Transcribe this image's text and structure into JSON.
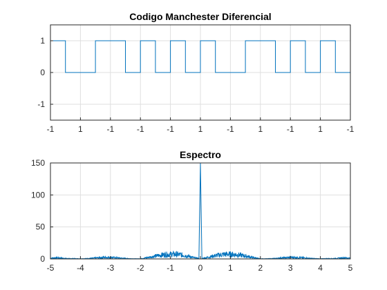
{
  "chart_data": [
    {
      "type": "line",
      "title": "Codigo Manchester Diferencial",
      "xlabel": "",
      "ylabel": "",
      "x_tick_labels": [
        "-1",
        "1",
        "-1",
        "-1",
        "-1",
        "1",
        "-1",
        "1",
        "-1",
        "1",
        "-1"
      ],
      "y_ticks": [
        -1,
        0,
        1
      ],
      "ylim": [
        -1.5,
        1.5
      ],
      "grid": true,
      "color": "#0072bd",
      "series": [
        {
          "x": [
            0,
            0.5,
            0.5,
            1.5,
            1.5,
            2.5,
            2.5,
            3.0,
            3.0,
            3.5,
            3.5,
            4.0,
            4.0,
            4.5,
            4.5,
            5.0,
            5.0,
            5.5,
            5.5,
            6.5,
            6.5,
            7.5,
            7.5,
            8.0,
            8.0,
            8.5,
            8.5,
            9.0,
            9.0,
            9.5,
            9.5,
            10.0
          ],
          "y": [
            1,
            1,
            0,
            0,
            1,
            1,
            0,
            0,
            1,
            1,
            0,
            0,
            1,
            1,
            0,
            0,
            1,
            1,
            0,
            0,
            1,
            1,
            0,
            0,
            1,
            1,
            0,
            0,
            1,
            1,
            0,
            0
          ]
        }
      ]
    },
    {
      "type": "line",
      "title": "Espectro",
      "xlabel": "",
      "ylabel": "",
      "x_ticks": [
        -5,
        -4,
        -3,
        -2,
        -1,
        0,
        1,
        2,
        3,
        4,
        5
      ],
      "y_ticks": [
        0,
        50,
        100,
        150
      ],
      "xlim": [
        -5,
        5
      ],
      "ylim": [
        0,
        150
      ],
      "grid": true,
      "color": "#0072bd",
      "series": [
        {
          "x": [
            -5,
            -4.8,
            -4.6,
            -4.4,
            -4.2,
            -4,
            -3.8,
            -3.6,
            -3.4,
            -3.2,
            -3,
            -2.8,
            -2.6,
            -2.4,
            -2.2,
            -2,
            -1.8,
            -1.6,
            -1.4,
            -1.2,
            -1,
            -0.8,
            -0.6,
            -0.4,
            -0.3,
            -0.2,
            -0.1,
            -0.05,
            0,
            0.05,
            0.1,
            0.2,
            0.3,
            0.4,
            0.6,
            0.8,
            1,
            1.2,
            1.4,
            1.6,
            1.8,
            2,
            2.2,
            2.4,
            2.6,
            2.8,
            3,
            3.2,
            3.4,
            3.6,
            3.8,
            4,
            4.2,
            4.4,
            4.6,
            4.8,
            5
          ],
          "y": [
            2,
            3,
            2,
            1,
            1,
            0.5,
            1,
            2,
            3,
            4,
            4,
            3,
            2,
            1,
            0.5,
            0.5,
            3,
            6,
            9,
            11,
            12,
            12,
            10,
            7,
            5,
            3,
            2,
            1,
            150,
            1,
            2,
            3,
            5,
            7,
            10,
            12,
            12,
            11,
            9,
            6,
            3,
            0.5,
            0.5,
            1,
            2,
            3,
            4,
            4,
            3,
            2,
            1,
            0.5,
            1,
            1,
            2,
            3,
            2
          ]
        }
      ]
    }
  ]
}
